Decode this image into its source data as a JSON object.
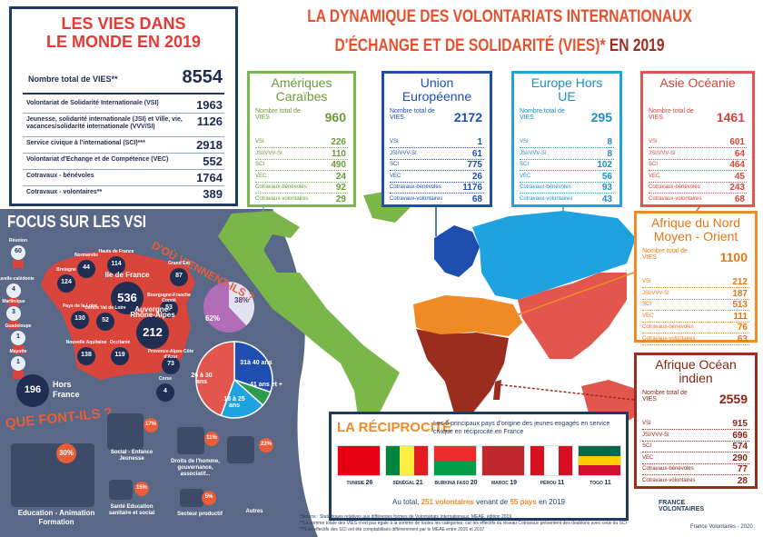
{
  "header": {
    "title_line1": "LA DYNAMIQUE DES VOLONTARIATS INTERNATIONAUX",
    "title_line2": "D'ÉCHANGE ET DE SOLIDARITÉ (VIES)*",
    "title_year": "EN 2019"
  },
  "world": {
    "title_line1": "LES VIES DANS",
    "title_line2": "LE MONDE EN 2019",
    "total_label": "Nombre total de VIES**",
    "total": 8554,
    "rows": [
      {
        "label": "Volontariat de Solidarité Internationale (VSI)",
        "value": 1963
      },
      {
        "label": "Jeunesse, solidarité internationale (JSI) et Ville, vie, vacances/solidarité internationale (VVV/SI)",
        "value": 1126
      },
      {
        "label": "Service civique à l'international (SCI)***",
        "value": 2918
      },
      {
        "label": "Volontariat d'Echange et de Compétence (VEC)",
        "value": 552
      },
      {
        "label": "Cotravaux - bénévoles",
        "value": 1764
      },
      {
        "label": "Cotravaux - volontaires**",
        "value": 389
      }
    ]
  },
  "regions": [
    {
      "name": "Amériques Caraïbes",
      "total_label": "Nombre total de VIES",
      "total": 960,
      "rows": [
        {
          "label": "VSI",
          "value": 226
        },
        {
          "label": "JSI/VVV-SI",
          "value": 110
        },
        {
          "label": "SCI",
          "value": 490
        },
        {
          "label": "VEC",
          "value": 24
        },
        {
          "label": "Cotravaux-bénévoles",
          "value": 92
        },
        {
          "label": "Cotravaux-volontaires",
          "value": 29
        }
      ]
    },
    {
      "name": "Union Européenne",
      "total_label": "Nombre total de VIES",
      "total": 2172,
      "rows": [
        {
          "label": "VSI",
          "value": 1
        },
        {
          "label": "JSI/VVV-SI",
          "value": 61
        },
        {
          "label": "SCI",
          "value": 775
        },
        {
          "label": "VEC",
          "value": 26
        },
        {
          "label": "Cotravaux-bénévoles",
          "value": 1176
        },
        {
          "label": "Cotravaux-volontaires",
          "value": 68
        }
      ]
    },
    {
      "name": "Europe Hors UE",
      "total_label": "Nombre total de VIES",
      "total": 295,
      "rows": [
        {
          "label": "VSI",
          "value": 8
        },
        {
          "label": "JSI/VVV-SI",
          "value": 8
        },
        {
          "label": "SCI",
          "value": 102
        },
        {
          "label": "VEC",
          "value": 56
        },
        {
          "label": "Cotravaux-bénévoles",
          "value": 93
        },
        {
          "label": "Cotravaux-volontaires",
          "value": 43
        }
      ]
    },
    {
      "name": "Asie Océanie",
      "total_label": "Nombre total de VIES",
      "total": 1461,
      "rows": [
        {
          "label": "VSI",
          "value": 601
        },
        {
          "label": "JSI/VVV-SI",
          "value": 64
        },
        {
          "label": "SCI",
          "value": 464
        },
        {
          "label": "VEC",
          "value": 45
        },
        {
          "label": "Cotravaux-bénévoles",
          "value": 243
        },
        {
          "label": "Cotravaux-volontaires",
          "value": 68
        }
      ]
    },
    {
      "name": "Afrique du Nord Moyen - Orient",
      "total_label": "Nombre total de VIES",
      "total": 1100,
      "rows": [
        {
          "label": "VSI",
          "value": 212
        },
        {
          "label": "JSI/VVV-SI",
          "value": 187
        },
        {
          "label": "SCI",
          "value": 513
        },
        {
          "label": "VEC",
          "value": 111
        },
        {
          "label": "Cotravaux-bénévoles",
          "value": 76
        },
        {
          "label": "Cotravaux-volontaires",
          "value": 63
        }
      ]
    },
    {
      "name": "Afrique Océan indien",
      "total_label": "Nombre total de VIES",
      "total": 2559,
      "rows": [
        {
          "label": "VSI",
          "value": 915
        },
        {
          "label": "JSI/VVV-SI",
          "value": 696
        },
        {
          "label": "SCI",
          "value": 574
        },
        {
          "label": "VEC",
          "value": 290
        },
        {
          "label": "Cotravaux-bénévoles",
          "value": 77
        },
        {
          "label": "Cotravaux-volontaires",
          "value": 28
        }
      ]
    }
  ],
  "vsi": {
    "title": "FOCUS SUR LES VSI",
    "origin_title": "D'OÙ VIENNENT-ILS ?",
    "places": [
      {
        "label": "Réunion",
        "value": 60
      },
      {
        "label": "Nouvelle-calédonie",
        "value": 4
      },
      {
        "label": "Martinique",
        "value": 3
      },
      {
        "label": "Guadeloupe",
        "value": 1
      },
      {
        "label": "Mayotte",
        "value": 1
      },
      {
        "label": "Hauts de France",
        "value": 114
      },
      {
        "label": "Normandie",
        "value": 44
      },
      {
        "label": "Bretagne",
        "value": 124
      },
      {
        "label": "Ile de France",
        "value": 536
      },
      {
        "label": "Grand Est",
        "value": 87
      },
      {
        "label": "Pays de la Loire",
        "value": 130
      },
      {
        "label": "Centre Val de Loire",
        "value": 52
      },
      {
        "label": "Bourgogne-Franche Comté",
        "value": 53
      },
      {
        "label": "Auvergne-Rhône-Alpes",
        "value": 212
      },
      {
        "label": "Nouvelle Aquitaine",
        "value": 138
      },
      {
        "label": "Occitanie",
        "value": 119
      },
      {
        "label": "Provence-Alpes Côte d'Azur",
        "value": 73
      },
      {
        "label": "Corse",
        "value": 4
      }
    ],
    "outside": {
      "label": "Hors France",
      "value": 196
    },
    "gender": {
      "female": "38%",
      "male": "62%"
    },
    "ages": [
      "31à 40 ans",
      "41 ans et +",
      "18 à 25 ans",
      "26 à 30 ans"
    ],
    "activity_title": "QUE FONT-ILS ?",
    "activities": [
      {
        "label": "Education - Animation Formation",
        "value": "30%"
      },
      {
        "label": "Social - Enfance Jeunesse",
        "value": "17%"
      },
      {
        "label": "Droits de l'homme, gouvernance, associatif...",
        "value": "11%"
      },
      {
        "label": "Autres",
        "value": "22%"
      },
      {
        "label": "Santé Education sanitaire et social",
        "value": "15%"
      },
      {
        "label": "Secteur productif",
        "value": "5%"
      }
    ]
  },
  "reciprocity": {
    "title": "LA RÉCIPROCITÉ",
    "description": "Les 6 principaux pays d'origine des jeunes engagés en service civique en réciprocité en France",
    "countries": [
      {
        "name": "TUNISIE",
        "value": 26
      },
      {
        "name": "SÉNÉGAL",
        "value": 21
      },
      {
        "name": "BURKINA FASO",
        "value": 20
      },
      {
        "name": "MAROC",
        "value": 19
      },
      {
        "name": "PÉROU",
        "value": 11
      },
      {
        "name": "TOGO",
        "value": 11
      }
    ],
    "summary_before": "Au total,",
    "summary_volunteers": "251 volontaires",
    "summary_middle": "venant de",
    "summary_countries": "55 pays",
    "summary_after": "en 2019"
  },
  "footnotes": [
    "*Source : Statistiques relatives aux différentes formes de Volontariats Internationaux, MEAE, édition 2019",
    "**La somme totale des VIES n'est pas égale à la somme de toutes les catégories, car les effectifs du réseau Cotravaux présentent des doublons avec ceux du SCI",
    "***Les effectifs des SCI ont été comptabilisés différemment par le MEAE entre 2016 et 2017"
  ],
  "credit": "France Volontaires - 2020",
  "logo": "FRANCE VOLONTAIRES"
}
